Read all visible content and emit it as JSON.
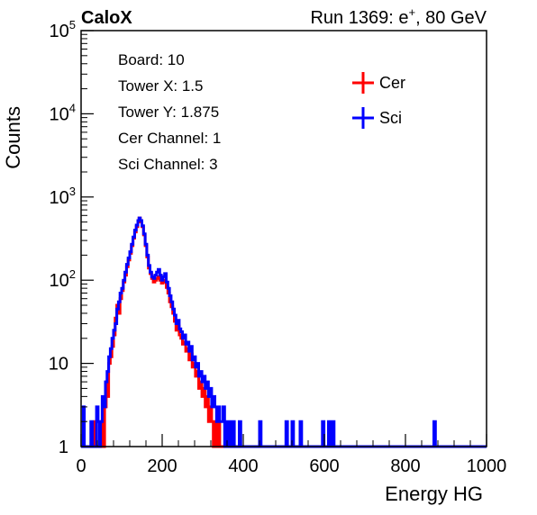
{
  "header": {
    "left": "CaloX",
    "right_prefix": "Run 1369: e",
    "right_sup": "+",
    "right_suffix": ", 80 GeV"
  },
  "info_lines": [
    "Board: 10",
    "Tower X: 1.5",
    "Tower Y: 1.875",
    "Cer Channel: 1",
    "Sci Channel: 3"
  ],
  "legend": {
    "placement": "top-right",
    "entries": [
      {
        "name": "Cer",
        "color": "#ff0000"
      },
      {
        "name": "Sci",
        "color": "#0000ff"
      }
    ]
  },
  "chart_data": {
    "type": "histogram",
    "xlabel": "Energy HG",
    "ylabel": "Counts",
    "xlim": [
      0,
      1000
    ],
    "ylim": [
      1,
      100000
    ],
    "yscale": "log",
    "grid": false,
    "x_ticks": [
      {
        "value": 0,
        "label": "0"
      },
      {
        "value": 200,
        "label": "200"
      },
      {
        "value": 400,
        "label": "400"
      },
      {
        "value": 600,
        "label": "600"
      },
      {
        "value": 800,
        "label": "800"
      },
      {
        "value": 1000,
        "label": "1000"
      }
    ],
    "y_ticks": [
      {
        "value": 1,
        "base": "1",
        "exp": ""
      },
      {
        "value": 10,
        "base": "10",
        "exp": ""
      },
      {
        "value": 100,
        "base": "10",
        "exp": "2"
      },
      {
        "value": 1000,
        "base": "10",
        "exp": "3"
      },
      {
        "value": 10000,
        "base": "10",
        "exp": "4"
      },
      {
        "value": 100000,
        "base": "10",
        "exp": "5"
      }
    ],
    "series": [
      {
        "name": "Cer",
        "color": "#ff0000",
        "points": [
          [
            0,
            1
          ],
          [
            30,
            1
          ],
          [
            33,
            2
          ],
          [
            36,
            1
          ],
          [
            45,
            1
          ],
          [
            50,
            2
          ],
          [
            55,
            1
          ],
          [
            58,
            3
          ],
          [
            62,
            6
          ],
          [
            65,
            4
          ],
          [
            68,
            10
          ],
          [
            72,
            12
          ],
          [
            76,
            16
          ],
          [
            80,
            22
          ],
          [
            84,
            35
          ],
          [
            88,
            50
          ],
          [
            92,
            40
          ],
          [
            96,
            60
          ],
          [
            100,
            75
          ],
          [
            104,
            95
          ],
          [
            108,
            115
          ],
          [
            112,
            145
          ],
          [
            116,
            175
          ],
          [
            120,
            210
          ],
          [
            124,
            260
          ],
          [
            128,
            320
          ],
          [
            132,
            380
          ],
          [
            136,
            440
          ],
          [
            140,
            500
          ],
          [
            143,
            560
          ],
          [
            146,
            510
          ],
          [
            150,
            440
          ],
          [
            154,
            350
          ],
          [
            158,
            260
          ],
          [
            162,
            190
          ],
          [
            166,
            140
          ],
          [
            170,
            120
          ],
          [
            174,
            105
          ],
          [
            178,
            95
          ],
          [
            182,
            100
          ],
          [
            186,
            105
          ],
          [
            190,
            110
          ],
          [
            194,
            100
          ],
          [
            198,
            92
          ],
          [
            202,
            95
          ],
          [
            206,
            100
          ],
          [
            210,
            82
          ],
          [
            214,
            70
          ],
          [
            218,
            55
          ],
          [
            222,
            48
          ],
          [
            226,
            40
          ],
          [
            230,
            32
          ],
          [
            234,
            25
          ],
          [
            238,
            28
          ],
          [
            242,
            22
          ],
          [
            246,
            20
          ],
          [
            250,
            17
          ],
          [
            254,
            18
          ],
          [
            258,
            14
          ],
          [
            262,
            15
          ],
          [
            266,
            11
          ],
          [
            270,
            13
          ],
          [
            274,
            9
          ],
          [
            278,
            10
          ],
          [
            282,
            7
          ],
          [
            286,
            8
          ],
          [
            290,
            5
          ],
          [
            294,
            6
          ],
          [
            298,
            4
          ],
          [
            302,
            5
          ],
          [
            306,
            3
          ],
          [
            310,
            4
          ],
          [
            314,
            2
          ],
          [
            318,
            3
          ],
          [
            322,
            2
          ],
          [
            326,
            1
          ],
          [
            330,
            2
          ],
          [
            334,
            1
          ],
          [
            338,
            2
          ],
          [
            342,
            1
          ],
          [
            1000,
            1
          ]
        ]
      },
      {
        "name": "Sci",
        "color": "#0000ff",
        "points": [
          [
            0,
            1
          ],
          [
            5,
            3
          ],
          [
            8,
            1
          ],
          [
            20,
            1
          ],
          [
            24,
            2
          ],
          [
            28,
            1
          ],
          [
            35,
            1
          ],
          [
            38,
            3
          ],
          [
            42,
            2
          ],
          [
            45,
            1
          ],
          [
            48,
            2
          ],
          [
            52,
            4
          ],
          [
            56,
            3
          ],
          [
            60,
            6
          ],
          [
            64,
            8
          ],
          [
            68,
            12
          ],
          [
            72,
            15
          ],
          [
            76,
            20
          ],
          [
            80,
            25
          ],
          [
            84,
            30
          ],
          [
            88,
            45
          ],
          [
            92,
            55
          ],
          [
            96,
            70
          ],
          [
            100,
            80
          ],
          [
            104,
            100
          ],
          [
            108,
            125
          ],
          [
            112,
            155
          ],
          [
            116,
            185
          ],
          [
            120,
            220
          ],
          [
            124,
            270
          ],
          [
            128,
            330
          ],
          [
            132,
            400
          ],
          [
            136,
            460
          ],
          [
            140,
            520
          ],
          [
            143,
            560
          ],
          [
            146,
            520
          ],
          [
            150,
            450
          ],
          [
            154,
            360
          ],
          [
            158,
            270
          ],
          [
            162,
            200
          ],
          [
            166,
            150
          ],
          [
            170,
            125
          ],
          [
            174,
            110
          ],
          [
            178,
            105
          ],
          [
            182,
            115
          ],
          [
            186,
            125
          ],
          [
            190,
            135
          ],
          [
            194,
            115
          ],
          [
            198,
            100
          ],
          [
            202,
            110
          ],
          [
            206,
            120
          ],
          [
            210,
            95
          ],
          [
            214,
            80
          ],
          [
            218,
            65
          ],
          [
            222,
            55
          ],
          [
            226,
            45
          ],
          [
            230,
            38
          ],
          [
            234,
            30
          ],
          [
            238,
            33
          ],
          [
            242,
            26
          ],
          [
            246,
            24
          ],
          [
            250,
            20
          ],
          [
            254,
            22
          ],
          [
            258,
            17
          ],
          [
            262,
            18
          ],
          [
            266,
            14
          ],
          [
            270,
            16
          ],
          [
            274,
            11
          ],
          [
            278,
            12
          ],
          [
            282,
            9
          ],
          [
            286,
            10
          ],
          [
            290,
            7
          ],
          [
            294,
            8
          ],
          [
            298,
            6
          ],
          [
            302,
            7
          ],
          [
            306,
            5
          ],
          [
            310,
            6
          ],
          [
            314,
            4
          ],
          [
            318,
            5
          ],
          [
            322,
            3
          ],
          [
            326,
            4
          ],
          [
            330,
            3
          ],
          [
            334,
            2
          ],
          [
            338,
            3
          ],
          [
            342,
            2
          ],
          [
            346,
            2
          ],
          [
            350,
            3
          ],
          [
            354,
            1
          ],
          [
            358,
            2
          ],
          [
            362,
            1
          ],
          [
            366,
            2
          ],
          [
            370,
            1
          ],
          [
            374,
            2
          ],
          [
            378,
            1
          ],
          [
            382,
            1
          ],
          [
            390,
            2
          ],
          [
            394,
            1
          ],
          [
            410,
            1
          ],
          [
            440,
            2
          ],
          [
            444,
            1
          ],
          [
            505,
            2
          ],
          [
            509,
            1
          ],
          [
            520,
            2
          ],
          [
            524,
            1
          ],
          [
            540,
            2
          ],
          [
            544,
            1
          ],
          [
            595,
            2
          ],
          [
            599,
            1
          ],
          [
            610,
            2
          ],
          [
            614,
            1
          ],
          [
            620,
            2
          ],
          [
            624,
            1
          ],
          [
            870,
            2
          ],
          [
            874,
            1
          ],
          [
            1000,
            1
          ]
        ]
      }
    ]
  }
}
